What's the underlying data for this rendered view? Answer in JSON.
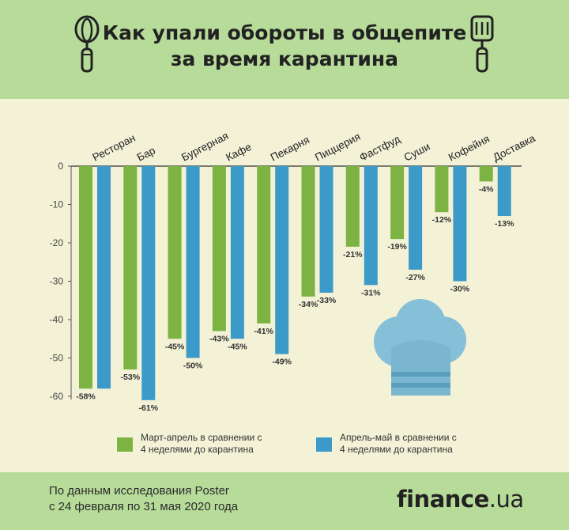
{
  "header": {
    "title_line1": "Как упали обороты в общепите",
    "title_line2": "за время карантина",
    "left_icon": "whisk-icon",
    "right_icon": "spatula-icon"
  },
  "chart_data": {
    "type": "bar",
    "categories": [
      "Ресторан",
      "Бар",
      "Бургерная",
      "Кафе",
      "Пекарня",
      "Пиццерия",
      "Фастфуд",
      "Суши",
      "Кофейня",
      "Доставка"
    ],
    "series": [
      {
        "name": "Март-апрель в сравнении с 4 неделями до карантина",
        "values": [
          -58,
          -53,
          -45,
          -43,
          -41,
          -34,
          -21,
          -19,
          -12,
          -4
        ],
        "labels": [
          "-58%",
          "-53%",
          "-45%",
          "-43%",
          "-41%",
          "-34%",
          "-21%",
          "-19%",
          "-12%",
          "-4%"
        ],
        "color": "#7cb342"
      },
      {
        "name": "Апрель-май в сравнении с 4 неделями до карантина",
        "values": [
          -58,
          -61,
          -50,
          -45,
          -49,
          -33,
          -31,
          -27,
          -30,
          -13
        ],
        "labels": [
          "",
          "-61%",
          "-50%",
          "-45%",
          "-49%",
          "-33%",
          "-31%",
          "-27%",
          "-30%",
          "-13%"
        ],
        "color": "#3c9ac9"
      }
    ],
    "yticks": [
      0,
      -10,
      -20,
      -30,
      -40,
      -50,
      -60
    ],
    "ylim": [
      -60,
      0
    ],
    "grid": false,
    "legend_position": "bottom",
    "legend": [
      {
        "line1": "Март-апрель в сравнении с",
        "line2": "4 неделями до карантина"
      },
      {
        "line1": "Апрель-май в сравнении с",
        "line2": "4 неделями до карантина"
      }
    ]
  },
  "footer": {
    "source_line1": "По данным исследования Poster",
    "source_line2": "с 24 февраля по 31 мая 2020 года",
    "brand_main": "finance",
    "brand_suffix": ".ua"
  },
  "decor": {
    "chef_hat_icon": "chef-hat-icon"
  }
}
